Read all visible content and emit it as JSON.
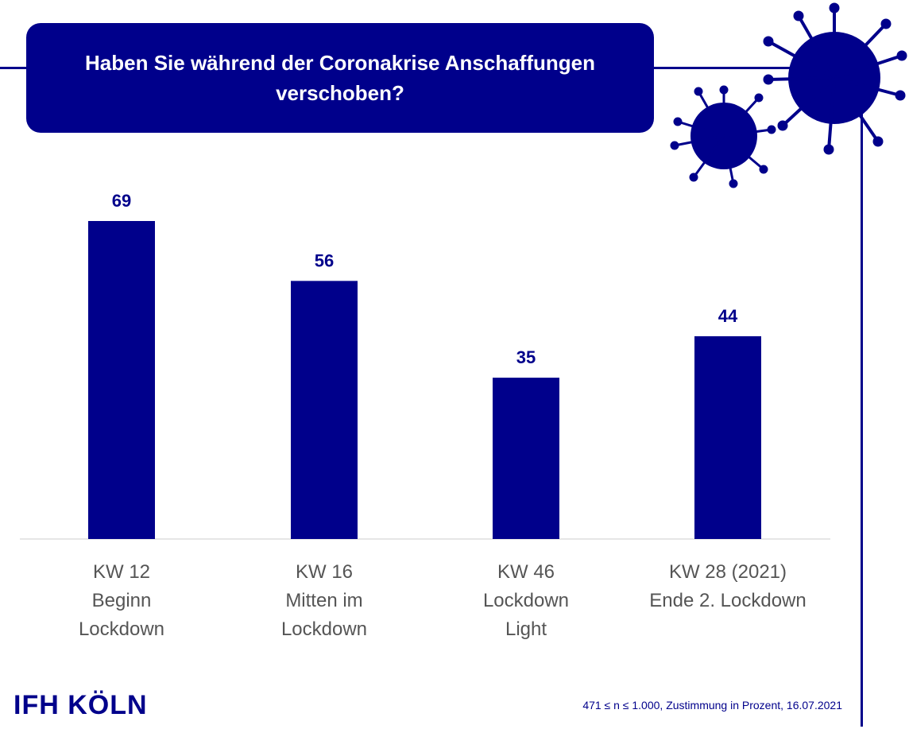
{
  "title": "Haben Sie während der Coronakrise Anschaffungen verschoben?",
  "source_note": "471 ≤ n ≤ 1.000,  Zustimmung in Prozent, 16.07.2021",
  "logo_text": "IFH KÖLN",
  "colors": {
    "bar": "#00008b",
    "axis": "#cccccc",
    "label": "#555555"
  },
  "chart_data": {
    "type": "bar",
    "categories": [
      [
        "KW 12",
        "Beginn",
        "Lockdown"
      ],
      [
        "KW 16",
        "Mitten im",
        "Lockdown"
      ],
      [
        "KW 46",
        "Lockdown",
        "Light"
      ],
      [
        "KW 28 (2021)",
        "Ende 2. Lockdown"
      ]
    ],
    "values": [
      69,
      56,
      35,
      44
    ],
    "ylim": [
      0,
      69
    ],
    "grid": false
  }
}
